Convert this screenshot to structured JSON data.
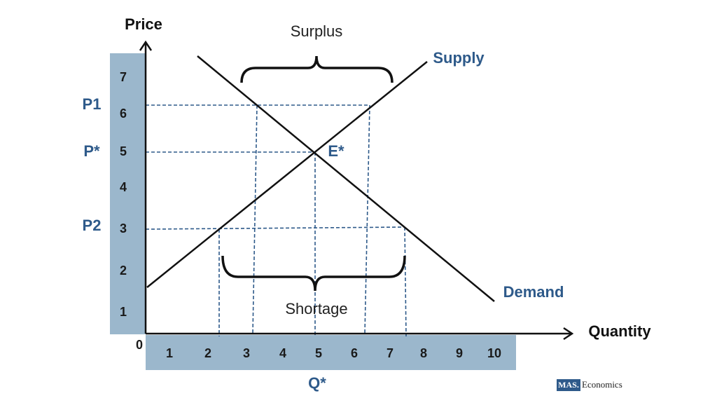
{
  "axes": {
    "y_label": "Price",
    "x_label": "Quantity",
    "origin": "0",
    "y_ticks": [
      "1",
      "2",
      "3",
      "4",
      "5",
      "6",
      "7"
    ],
    "x_ticks": [
      "1",
      "2",
      "3",
      "4",
      "5",
      "6",
      "7",
      "8",
      "9",
      "10"
    ]
  },
  "price_labels": {
    "p1": "P1",
    "p_star": "P*",
    "p2": "P2"
  },
  "quantity_label": "Q*",
  "curves": {
    "supply": "Supply",
    "demand": "Demand"
  },
  "equilibrium": "E*",
  "braces": {
    "surplus": "Surplus",
    "shortage": "Shortage"
  },
  "logo": {
    "mark": "MAS.",
    "text": "Economics"
  }
}
